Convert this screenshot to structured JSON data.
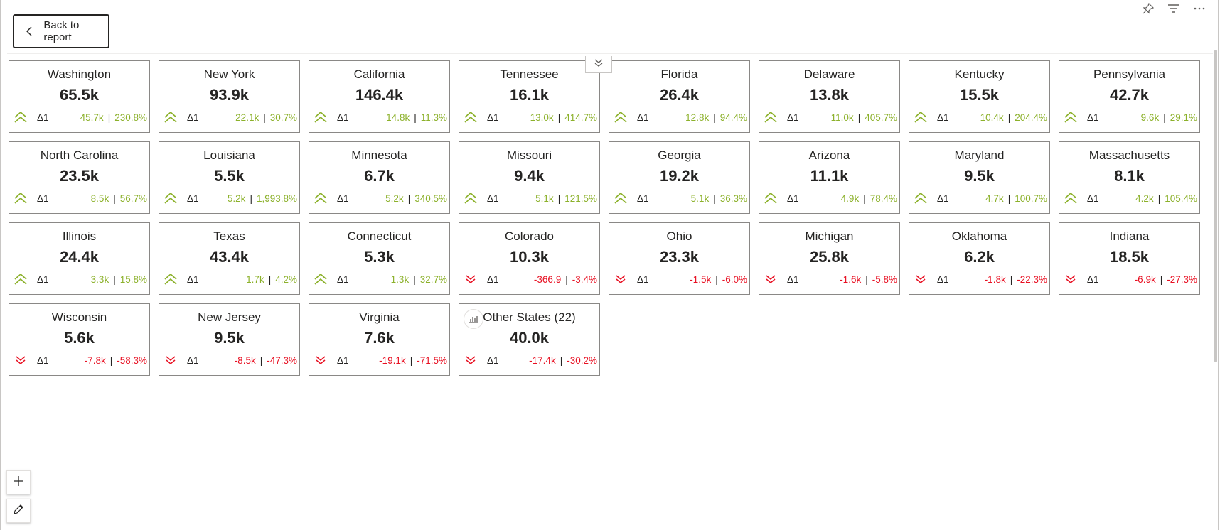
{
  "back_button": {
    "label": "Back to report"
  },
  "top_icons": [
    "pin-icon",
    "filter-icon",
    "more-options-icon"
  ],
  "colors": {
    "positive": "#8cb12b",
    "negative": "#e81123",
    "text": "#252423",
    "border": "#8a8886"
  },
  "delta_label": "Δ1",
  "cards": [
    {
      "name": "Washington",
      "value": "65.5k",
      "change": "45.7k",
      "pct": "230.8%",
      "trend": "up"
    },
    {
      "name": "New York",
      "value": "93.9k",
      "change": "22.1k",
      "pct": "30.7%",
      "trend": "up"
    },
    {
      "name": "California",
      "value": "146.4k",
      "change": "14.8k",
      "pct": "11.3%",
      "trend": "up"
    },
    {
      "name": "Tennessee",
      "value": "16.1k",
      "change": "13.0k",
      "pct": "414.7%",
      "trend": "up"
    },
    {
      "name": "Florida",
      "value": "26.4k",
      "change": "12.8k",
      "pct": "94.4%",
      "trend": "up"
    },
    {
      "name": "Delaware",
      "value": "13.8k",
      "change": "11.0k",
      "pct": "405.7%",
      "trend": "up"
    },
    {
      "name": "Kentucky",
      "value": "15.5k",
      "change": "10.4k",
      "pct": "204.4%",
      "trend": "up"
    },
    {
      "name": "Pennsylvania",
      "value": "42.7k",
      "change": "9.6k",
      "pct": "29.1%",
      "trend": "up"
    },
    {
      "name": "North Carolina",
      "value": "23.5k",
      "change": "8.5k",
      "pct": "56.7%",
      "trend": "up"
    },
    {
      "name": "Louisiana",
      "value": "5.5k",
      "change": "5.2k",
      "pct": "1,993.8%",
      "trend": "up"
    },
    {
      "name": "Minnesota",
      "value": "6.7k",
      "change": "5.2k",
      "pct": "340.5%",
      "trend": "up"
    },
    {
      "name": "Missouri",
      "value": "9.4k",
      "change": "5.1k",
      "pct": "121.5%",
      "trend": "up"
    },
    {
      "name": "Georgia",
      "value": "19.2k",
      "change": "5.1k",
      "pct": "36.3%",
      "trend": "up"
    },
    {
      "name": "Arizona",
      "value": "11.1k",
      "change": "4.9k",
      "pct": "78.4%",
      "trend": "up"
    },
    {
      "name": "Maryland",
      "value": "9.5k",
      "change": "4.7k",
      "pct": "100.7%",
      "trend": "up"
    },
    {
      "name": "Massachusetts",
      "value": "8.1k",
      "change": "4.2k",
      "pct": "105.4%",
      "trend": "up"
    },
    {
      "name": "Illinois",
      "value": "24.4k",
      "change": "3.3k",
      "pct": "15.8%",
      "trend": "up"
    },
    {
      "name": "Texas",
      "value": "43.4k",
      "change": "1.7k",
      "pct": "4.2%",
      "trend": "up"
    },
    {
      "name": "Connecticut",
      "value": "5.3k",
      "change": "1.3k",
      "pct": "32.7%",
      "trend": "up"
    },
    {
      "name": "Colorado",
      "value": "10.3k",
      "change": "-366.9",
      "pct": "-3.4%",
      "trend": "down"
    },
    {
      "name": "Ohio",
      "value": "23.3k",
      "change": "-1.5k",
      "pct": "-6.0%",
      "trend": "down"
    },
    {
      "name": "Michigan",
      "value": "25.8k",
      "change": "-1.6k",
      "pct": "-5.8%",
      "trend": "down"
    },
    {
      "name": "Oklahoma",
      "value": "6.2k",
      "change": "-1.8k",
      "pct": "-22.3%",
      "trend": "down"
    },
    {
      "name": "Indiana",
      "value": "18.5k",
      "change": "-6.9k",
      "pct": "-27.3%",
      "trend": "down"
    },
    {
      "name": "Wisconsin",
      "value": "5.6k",
      "change": "-7.8k",
      "pct": "-58.3%",
      "trend": "down"
    },
    {
      "name": "New Jersey",
      "value": "9.5k",
      "change": "-8.5k",
      "pct": "-47.3%",
      "trend": "down"
    },
    {
      "name": "Virginia",
      "value": "7.6k",
      "change": "-19.1k",
      "pct": "-71.5%",
      "trend": "down"
    },
    {
      "name": "Other States (22)",
      "value": "40.0k",
      "change": "-17.4k",
      "pct": "-30.2%",
      "trend": "down",
      "other": true
    }
  ],
  "side_tools": [
    "add-icon",
    "edit-icon"
  ]
}
